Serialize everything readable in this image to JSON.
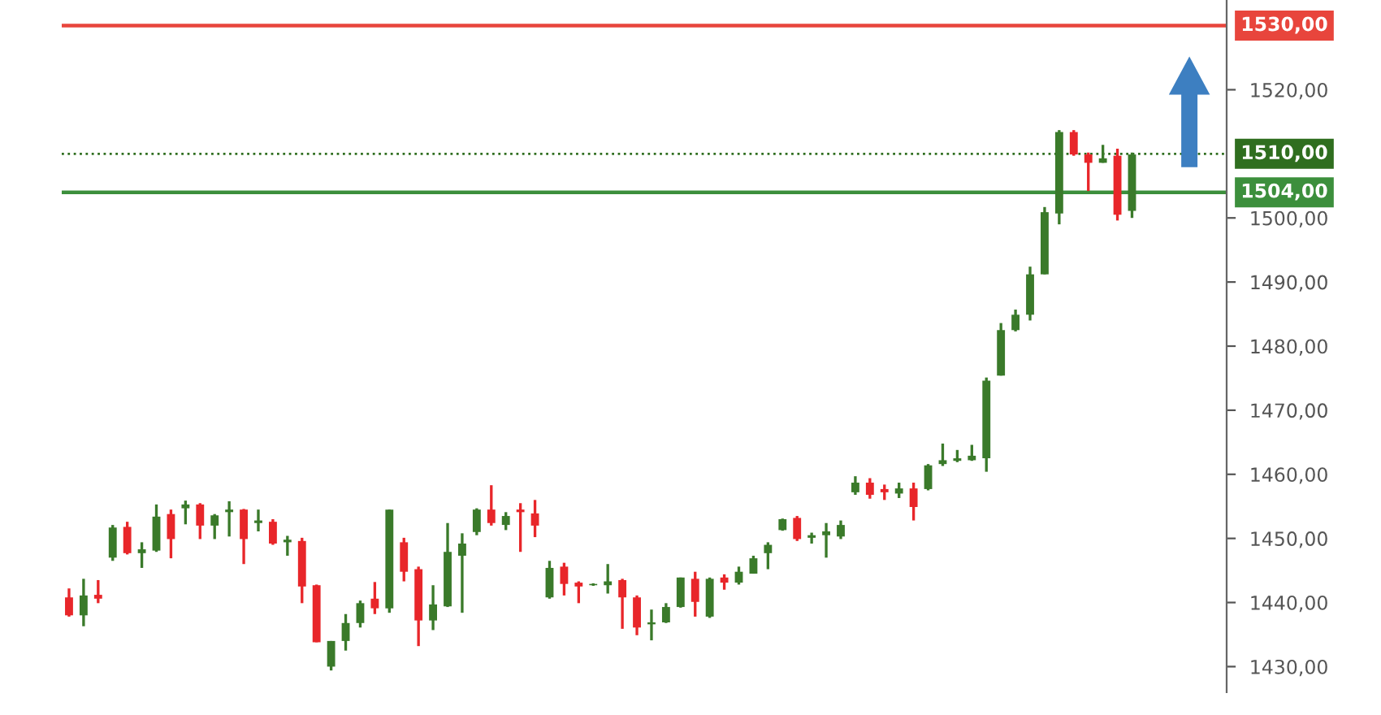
{
  "chart_data": {
    "type": "candlestick",
    "categories": [
      null,
      null,
      null,
      null,
      null,
      null,
      null,
      null,
      null,
      null,
      null,
      null,
      null,
      null,
      null,
      null,
      null,
      null,
      null,
      null,
      null,
      null,
      null,
      null,
      null,
      null,
      null,
      null,
      null,
      null,
      null,
      null,
      null,
      null,
      null,
      null,
      null,
      null,
      null,
      null,
      null,
      null,
      null,
      null,
      null,
      null,
      null,
      null,
      null,
      null,
      null,
      null,
      null,
      null,
      null,
      null,
      null,
      null,
      null,
      null,
      null,
      null,
      null,
      null,
      null,
      null,
      null,
      null,
      null,
      null,
      null,
      null,
      null,
      null,
      null,
      null,
      null,
      null,
      null,
      null
    ],
    "ohlc": [
      [
        1440.8,
        1442.2,
        1437.8,
        1438.0
      ],
      [
        1438.0,
        1443.7,
        1436.3,
        1441.1
      ],
      [
        1441.2,
        1443.5,
        1439.9,
        1440.6
      ],
      [
        1447.0,
        1452.1,
        1446.5,
        1451.7
      ],
      [
        1451.8,
        1452.6,
        1447.5,
        1447.7
      ],
      [
        1447.7,
        1449.4,
        1445.4,
        1448.3
      ],
      [
        1448.1,
        1455.3,
        1447.9,
        1453.4
      ],
      [
        1453.8,
        1454.5,
        1446.9,
        1449.9
      ],
      [
        1454.7,
        1455.9,
        1452.2,
        1455.3
      ],
      [
        1455.3,
        1455.5,
        1449.9,
        1452.0
      ],
      [
        1452.0,
        1453.8,
        1449.9,
        1453.6
      ],
      [
        1454.1,
        1455.8,
        1450.3,
        1454.5
      ],
      [
        1454.5,
        1454.6,
        1446.0,
        1449.9
      ],
      [
        1452.4,
        1454.5,
        1451.1,
        1452.8
      ],
      [
        1452.6,
        1453.0,
        1449.0,
        1449.2
      ],
      [
        1449.4,
        1450.4,
        1447.3,
        1449.8
      ],
      [
        1449.6,
        1450.1,
        1439.9,
        1442.5
      ],
      [
        1442.7,
        1442.8,
        1433.8,
        1433.8
      ],
      [
        1430.0,
        1434.0,
        1429.4,
        1434.0
      ],
      [
        1434.0,
        1438.2,
        1432.5,
        1436.8
      ],
      [
        1436.8,
        1440.3,
        1436.1,
        1439.9
      ],
      [
        1440.6,
        1443.2,
        1438.2,
        1439.1
      ],
      [
        1439.1,
        1454.5,
        1438.4,
        1454.5
      ],
      [
        1449.4,
        1450.1,
        1443.3,
        1444.8
      ],
      [
        1445.2,
        1445.6,
        1433.2,
        1437.2
      ],
      [
        1437.2,
        1442.7,
        1435.7,
        1439.7
      ],
      [
        1439.4,
        1452.4,
        1439.3,
        1447.9
      ],
      [
        1447.3,
        1450.8,
        1438.4,
        1449.2
      ],
      [
        1451.0,
        1454.7,
        1450.5,
        1454.5
      ],
      [
        1454.5,
        1458.3,
        1452.0,
        1452.4
      ],
      [
        1452.1,
        1454.1,
        1451.3,
        1453.5
      ],
      [
        1454.5,
        1455.5,
        1447.9,
        1454.1
      ],
      [
        1453.9,
        1456.0,
        1450.2,
        1452.0
      ],
      [
        1440.8,
        1446.5,
        1440.6,
        1445.4
      ],
      [
        1445.6,
        1446.2,
        1441.1,
        1442.9
      ],
      [
        1443.1,
        1443.3,
        1439.9,
        1442.5
      ],
      [
        1442.7,
        1443.0,
        1442.6,
        1442.9
      ],
      [
        1442.7,
        1446.0,
        1441.4,
        1443.3
      ],
      [
        1443.5,
        1443.7,
        1435.9,
        1440.8
      ],
      [
        1440.8,
        1441.1,
        1434.9,
        1436.1
      ],
      [
        1436.6,
        1438.9,
        1434.1,
        1436.9
      ],
      [
        1436.9,
        1439.9,
        1436.8,
        1439.3
      ],
      [
        1439.3,
        1443.9,
        1439.2,
        1443.9
      ],
      [
        1443.7,
        1444.8,
        1437.8,
        1440.1
      ],
      [
        1437.8,
        1443.9,
        1437.6,
        1443.7
      ],
      [
        1443.9,
        1444.4,
        1442.0,
        1443.1
      ],
      [
        1443.1,
        1445.6,
        1442.8,
        1444.8
      ],
      [
        1444.5,
        1447.3,
        1444.5,
        1446.9
      ],
      [
        1447.7,
        1449.4,
        1445.2,
        1449.0
      ],
      [
        1451.3,
        1453.1,
        1451.2,
        1453.0
      ],
      [
        1453.2,
        1453.5,
        1449.6,
        1449.9
      ],
      [
        1450.1,
        1450.9,
        1449.2,
        1450.5
      ],
      [
        1450.5,
        1452.4,
        1447.0,
        1451.1
      ],
      [
        1450.3,
        1452.8,
        1449.9,
        1452.1
      ],
      [
        1457.2,
        1459.7,
        1456.8,
        1458.7
      ],
      [
        1458.7,
        1459.4,
        1456.2,
        1456.8
      ],
      [
        1457.7,
        1458.4,
        1456.0,
        1457.2
      ],
      [
        1457.0,
        1458.7,
        1456.3,
        1457.8
      ],
      [
        1457.8,
        1458.7,
        1452.8,
        1454.9
      ],
      [
        1457.7,
        1461.6,
        1457.5,
        1461.4
      ],
      [
        1461.6,
        1464.8,
        1461.3,
        1462.2
      ],
      [
        1462.1,
        1463.8,
        1461.9,
        1462.5
      ],
      [
        1462.2,
        1464.6,
        1462.1,
        1462.9
      ],
      [
        1462.5,
        1475.1,
        1460.4,
        1474.6
      ],
      [
        1475.4,
        1483.6,
        1475.4,
        1482.5
      ],
      [
        1482.5,
        1485.7,
        1482.3,
        1484.9
      ],
      [
        1484.9,
        1492.4,
        1484.0,
        1491.2
      ],
      [
        1491.2,
        1501.7,
        1491.2,
        1500.9
      ],
      [
        1500.7,
        1513.7,
        1499.0,
        1513.4
      ],
      [
        1513.4,
        1513.7,
        1509.7,
        1509.9
      ],
      [
        1509.9,
        1510.2,
        1504.2,
        1508.6
      ],
      [
        1508.6,
        1511.4,
        1508.6,
        1509.3
      ],
      [
        1509.7,
        1510.8,
        1499.6,
        1500.5
      ],
      [
        1501.1,
        1510.2,
        1500.0,
        1509.9
      ],
      null,
      null,
      null,
      null,
      null,
      null
    ],
    "ylim": [
      1426,
      1534
    ],
    "yticks": [
      {
        "value": 1430,
        "label": "1430,00"
      },
      {
        "value": 1440,
        "label": "1440,00"
      },
      {
        "value": 1450,
        "label": "1450,00"
      },
      {
        "value": 1460,
        "label": "1460,00"
      },
      {
        "value": 1470,
        "label": "1470,00"
      },
      {
        "value": 1480,
        "label": "1480,00"
      },
      {
        "value": 1490,
        "label": "1490,00"
      },
      {
        "value": 1500,
        "label": "1500,00"
      },
      {
        "value": 1520,
        "label": "1520,00"
      }
    ],
    "ref_lines": [
      {
        "axis": "y",
        "value": 1530,
        "label": "1530,00",
        "color": "#e8453c",
        "line_style": "solid"
      },
      {
        "axis": "y",
        "value": 1510,
        "label": "1510,00",
        "color": "#2f6e1f",
        "line_style": "dotted"
      },
      {
        "axis": "y",
        "value": 1504,
        "label": "1504,00",
        "color": "#3c8f3c",
        "line_style": "solid"
      }
    ],
    "tick_labels": "y",
    "grid": false,
    "legend": false
  }
}
